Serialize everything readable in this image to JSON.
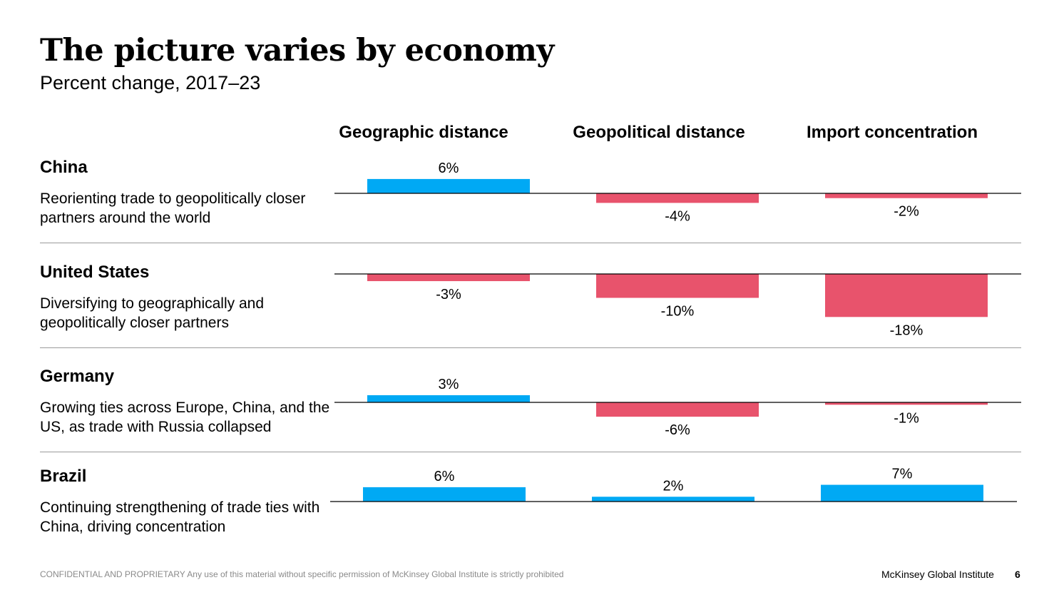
{
  "title": "The picture varies by economy",
  "subtitle": "Percent change, 2017–23",
  "colors": {
    "positive": "#00A9F4",
    "negative": "#E8536C",
    "axis": "#000000",
    "divider": "#9a9a9a"
  },
  "chart_data": {
    "type": "bar",
    "title": "The picture varies by economy",
    "subtitle": "Percent change, 2017–23",
    "unit": "%",
    "metrics": [
      "Geographic distance",
      "Geopolitical distance",
      "Import concentration"
    ],
    "rows": [
      {
        "country": "China",
        "description": "Reorienting trade to geopolitically closer partners around the world",
        "values": [
          6,
          -4,
          -2
        ],
        "labels": [
          "6%",
          "-4%",
          "-2%"
        ]
      },
      {
        "country": "United States",
        "description": "Diversifying to geographically and geopolitically closer partners",
        "values": [
          -3,
          -10,
          -18
        ],
        "labels": [
          "-3%",
          "-10%",
          "-18%"
        ]
      },
      {
        "country": "Germany",
        "description": "Growing ties across Europe, China, and the US, as trade with Russia collapsed",
        "values": [
          3,
          -6,
          -1
        ],
        "labels": [
          "3%",
          "-6%",
          "-1%"
        ]
      },
      {
        "country": "Brazil",
        "description": "Continuing strengthening of trade ties with China, driving concentration",
        "values": [
          6,
          2,
          7
        ],
        "labels": [
          "6%",
          "2%",
          "7%"
        ]
      }
    ]
  },
  "footer": {
    "confidential": "CONFIDENTIAL AND PROPRIETARY Any use of this material without specific permission of McKinsey Global Institute is strictly prohibited",
    "brand": "McKinsey Global Institute",
    "page": "6"
  }
}
